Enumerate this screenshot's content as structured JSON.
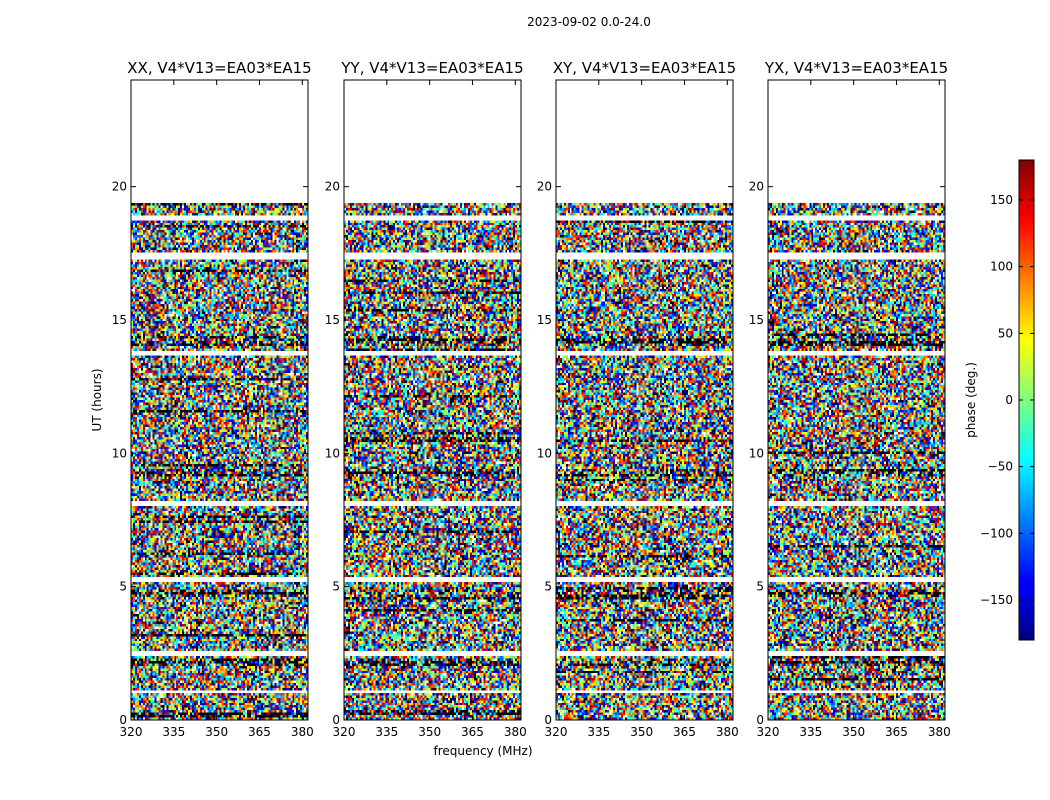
{
  "figure": {
    "suptitle": "2023-09-02 0.0-24.0",
    "xlabel": "frequency (MHz)",
    "ylabel": "UT (hours)",
    "colorbar_label": "phase (deg.)"
  },
  "chart_data": {
    "type": "heatmap",
    "colormap": "jet",
    "x_range": [
      320,
      382
    ],
    "y_range": [
      0,
      24
    ],
    "x_ticks": [
      320,
      335,
      350,
      365,
      380
    ],
    "y_ticks": [
      0,
      5,
      10,
      15,
      20
    ],
    "color_range": [
      -180,
      180
    ],
    "colorbar_ticks": [
      150,
      100,
      50,
      0,
      -50,
      -100,
      -150
    ],
    "data_time_range": [
      0.0,
      19.35
    ],
    "panels": [
      {
        "title": "XX, V4*V13=EA03*EA15"
      },
      {
        "title": "YY, V4*V13=EA03*EA15"
      },
      {
        "title": "XY, V4*V13=EA03*EA15"
      },
      {
        "title": "YX, V4*V13=EA03*EA15"
      }
    ],
    "blank_intervals_hours": [
      [
        18.7,
        18.9
      ],
      [
        17.3,
        17.5
      ],
      [
        13.7,
        13.85
      ],
      [
        8.0,
        8.2
      ],
      [
        5.2,
        5.35
      ],
      [
        2.4,
        2.6
      ],
      [
        1.0,
        1.1
      ]
    ],
    "dense_intervals_hours": [
      [
        14.0,
        14.4
      ],
      [
        9.1,
        9.4
      ],
      [
        4.6,
        4.9
      ],
      [
        2.0,
        2.3
      ]
    ]
  }
}
